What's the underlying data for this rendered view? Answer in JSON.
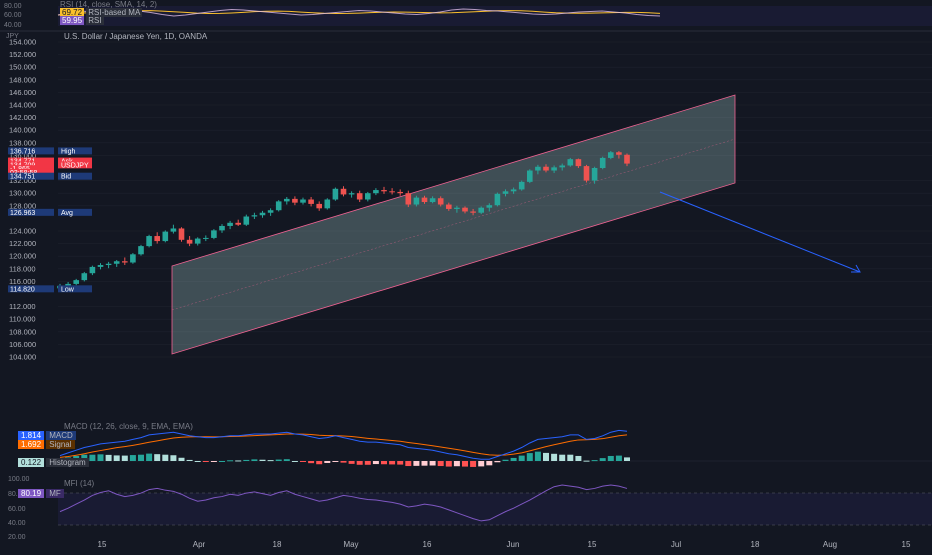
{
  "colors": {
    "background": "#131722",
    "grid": "#1e222d",
    "up": "#26a69a",
    "down": "#ef5350",
    "channel": "#f06292",
    "channel_fill": "#b2dfdb",
    "projection": "#2962ff",
    "rsi_line": "#e1bee7",
    "rsi_ma": "#fbc02d",
    "macd_line": "#2962ff",
    "signal_line": "#ff6d00",
    "mfi_line": "#7e57c2",
    "label_blue": "#1e3a78",
    "label_red": "#f23645"
  },
  "rsi_panel": {
    "title": "RSI (14, close, SMA, 14, 2)",
    "legend": [
      {
        "value": "69.72",
        "name": "RSI-based MA",
        "color": "#fbc02d"
      },
      {
        "value": "59.95",
        "name": "RSI",
        "color": "#7e57c2"
      }
    ],
    "axis": [
      "80.00",
      "60.00",
      "40.00"
    ],
    "points": [
      62,
      66,
      70,
      68,
      72,
      75,
      73,
      70,
      67,
      63,
      60,
      62,
      65,
      68,
      71,
      73,
      72,
      70,
      68,
      66,
      64,
      62,
      63,
      65,
      67,
      69,
      71,
      70,
      68,
      66,
      64,
      63,
      65,
      68,
      72,
      74,
      73,
      71,
      70,
      68,
      66,
      64,
      63,
      64,
      66,
      68,
      69,
      70,
      68,
      66,
      63,
      61,
      60
    ]
  },
  "main_chart": {
    "unit": "JPY",
    "title": "U.S. Dollar / Japanese Yen, 1D, OANDA",
    "axis_labels": [
      "154.000",
      "152.000",
      "150.000",
      "148.000",
      "146.000",
      "144.000",
      "142.000",
      "140.000",
      "138.000",
      "136.000",
      "132.000",
      "130.000",
      "128.000",
      "124.000",
      "122.000",
      "120.000",
      "118.000",
      "116.000",
      "112.000",
      "110.000",
      "108.000",
      "106.000",
      "104.000"
    ],
    "price_labels": [
      {
        "value": "136.716",
        "tag": "High",
        "price": 136.716,
        "kind": "blue"
      },
      {
        "value": "134.771",
        "tag": "Ask",
        "price": 135.1,
        "kind": "red"
      },
      {
        "value": "134.709",
        "tag": "USDJPY",
        "price": 134.5,
        "kind": "red"
      },
      {
        "value": "-1.865",
        "tag": "",
        "price": 133.9,
        "kind": "red"
      },
      {
        "value": "03:58:58",
        "tag": "",
        "price": 133.3,
        "kind": "red"
      },
      {
        "value": "134.751",
        "tag": "Bid",
        "price": 132.7,
        "kind": "blue"
      },
      {
        "value": "126.963",
        "tag": "Avg",
        "price": 126.963,
        "kind": "blue"
      },
      {
        "value": "114.820",
        "tag": "Low",
        "price": 114.82,
        "kind": "blue"
      }
    ]
  },
  "chart_data": {
    "type": "candlestick",
    "title": "U.S. Dollar / Japanese Yen, 1D, OANDA",
    "ylabel": "JPY",
    "ylim": [
      102,
      156
    ],
    "x_labels": [
      "15",
      "Apr",
      "18",
      "May",
      "16",
      "Jun",
      "15",
      "Jul",
      "18",
      "Aug",
      "15"
    ],
    "candles": [
      {
        "o": 114.9,
        "h": 115.6,
        "l": 114.8,
        "c": 115.3
      },
      {
        "o": 115.3,
        "h": 115.9,
        "l": 115.0,
        "c": 115.6
      },
      {
        "o": 115.6,
        "h": 116.4,
        "l": 115.4,
        "c": 116.2
      },
      {
        "o": 116.2,
        "h": 117.5,
        "l": 116.0,
        "c": 117.3
      },
      {
        "o": 117.3,
        "h": 118.5,
        "l": 117.0,
        "c": 118.3
      },
      {
        "o": 118.3,
        "h": 118.9,
        "l": 117.9,
        "c": 118.6
      },
      {
        "o": 118.6,
        "h": 119.1,
        "l": 118.1,
        "c": 118.8
      },
      {
        "o": 118.8,
        "h": 119.4,
        "l": 118.3,
        "c": 119.2
      },
      {
        "o": 119.2,
        "h": 119.8,
        "l": 118.6,
        "c": 119.0
      },
      {
        "o": 119.0,
        "h": 120.5,
        "l": 118.8,
        "c": 120.3
      },
      {
        "o": 120.3,
        "h": 121.8,
        "l": 120.1,
        "c": 121.6
      },
      {
        "o": 121.6,
        "h": 123.4,
        "l": 121.4,
        "c": 123.2
      },
      {
        "o": 123.2,
        "h": 123.8,
        "l": 122.0,
        "c": 122.4
      },
      {
        "o": 122.4,
        "h": 124.1,
        "l": 122.2,
        "c": 123.9
      },
      {
        "o": 123.9,
        "h": 125.0,
        "l": 123.6,
        "c": 124.4
      },
      {
        "o": 124.4,
        "h": 124.6,
        "l": 122.3,
        "c": 122.6
      },
      {
        "o": 122.6,
        "h": 123.2,
        "l": 121.6,
        "c": 122.0
      },
      {
        "o": 122.0,
        "h": 123.0,
        "l": 121.7,
        "c": 122.8
      },
      {
        "o": 122.8,
        "h": 123.3,
        "l": 122.4,
        "c": 122.9
      },
      {
        "o": 122.9,
        "h": 124.3,
        "l": 122.7,
        "c": 124.1
      },
      {
        "o": 124.1,
        "h": 125.1,
        "l": 123.7,
        "c": 124.8
      },
      {
        "o": 124.8,
        "h": 125.6,
        "l": 124.3,
        "c": 125.3
      },
      {
        "o": 125.3,
        "h": 125.8,
        "l": 124.8,
        "c": 125.0
      },
      {
        "o": 125.0,
        "h": 126.6,
        "l": 124.8,
        "c": 126.3
      },
      {
        "o": 126.3,
        "h": 126.9,
        "l": 125.9,
        "c": 126.5
      },
      {
        "o": 126.5,
        "h": 127.2,
        "l": 126.1,
        "c": 126.9
      },
      {
        "o": 126.9,
        "h": 127.6,
        "l": 126.4,
        "c": 127.3
      },
      {
        "o": 127.3,
        "h": 128.9,
        "l": 127.1,
        "c": 128.7
      },
      {
        "o": 128.7,
        "h": 129.4,
        "l": 128.2,
        "c": 129.1
      },
      {
        "o": 129.1,
        "h": 129.5,
        "l": 128.1,
        "c": 128.5
      },
      {
        "o": 128.5,
        "h": 129.3,
        "l": 128.2,
        "c": 129.0
      },
      {
        "o": 129.0,
        "h": 129.4,
        "l": 127.9,
        "c": 128.3
      },
      {
        "o": 128.3,
        "h": 128.7,
        "l": 127.2,
        "c": 127.6
      },
      {
        "o": 127.6,
        "h": 129.2,
        "l": 127.4,
        "c": 129.0
      },
      {
        "o": 129.0,
        "h": 130.9,
        "l": 128.8,
        "c": 130.7
      },
      {
        "o": 130.7,
        "h": 131.1,
        "l": 129.5,
        "c": 129.8
      },
      {
        "o": 129.8,
        "h": 130.3,
        "l": 129.3,
        "c": 130.0
      },
      {
        "o": 130.0,
        "h": 130.4,
        "l": 128.6,
        "c": 129.0
      },
      {
        "o": 129.0,
        "h": 130.2,
        "l": 128.7,
        "c": 130.0
      },
      {
        "o": 130.0,
        "h": 130.8,
        "l": 129.7,
        "c": 130.5
      },
      {
        "o": 130.5,
        "h": 131.0,
        "l": 129.9,
        "c": 130.3
      },
      {
        "o": 130.3,
        "h": 130.8,
        "l": 129.8,
        "c": 130.2
      },
      {
        "o": 130.2,
        "h": 130.6,
        "l": 129.6,
        "c": 130.0
      },
      {
        "o": 130.0,
        "h": 130.4,
        "l": 127.8,
        "c": 128.2
      },
      {
        "o": 128.2,
        "h": 129.6,
        "l": 127.9,
        "c": 129.3
      },
      {
        "o": 129.3,
        "h": 129.6,
        "l": 128.3,
        "c": 128.6
      },
      {
        "o": 128.6,
        "h": 129.5,
        "l": 128.4,
        "c": 129.2
      },
      {
        "o": 129.2,
        "h": 129.5,
        "l": 127.9,
        "c": 128.2
      },
      {
        "o": 128.2,
        "h": 128.5,
        "l": 127.2,
        "c": 127.5
      },
      {
        "o": 127.5,
        "h": 128.0,
        "l": 126.9,
        "c": 127.7
      },
      {
        "o": 127.7,
        "h": 127.9,
        "l": 126.8,
        "c": 127.1
      },
      {
        "o": 127.1,
        "h": 127.5,
        "l": 126.5,
        "c": 126.9
      },
      {
        "o": 126.9,
        "h": 127.9,
        "l": 126.7,
        "c": 127.7
      },
      {
        "o": 127.7,
        "h": 128.4,
        "l": 127.1,
        "c": 128.1
      },
      {
        "o": 128.1,
        "h": 130.1,
        "l": 127.9,
        "c": 129.9
      },
      {
        "o": 129.9,
        "h": 130.6,
        "l": 129.5,
        "c": 130.3
      },
      {
        "o": 130.3,
        "h": 130.9,
        "l": 129.9,
        "c": 130.6
      },
      {
        "o": 130.6,
        "h": 132.0,
        "l": 130.4,
        "c": 131.8
      },
      {
        "o": 131.8,
        "h": 133.8,
        "l": 131.6,
        "c": 133.6
      },
      {
        "o": 133.6,
        "h": 134.5,
        "l": 133.0,
        "c": 134.2
      },
      {
        "o": 134.2,
        "h": 134.6,
        "l": 133.3,
        "c": 133.6
      },
      {
        "o": 133.6,
        "h": 134.4,
        "l": 133.2,
        "c": 134.1
      },
      {
        "o": 134.1,
        "h": 134.7,
        "l": 133.6,
        "c": 134.4
      },
      {
        "o": 134.4,
        "h": 135.6,
        "l": 134.2,
        "c": 135.4
      },
      {
        "o": 135.4,
        "h": 135.5,
        "l": 134.0,
        "c": 134.3
      },
      {
        "o": 134.3,
        "h": 134.5,
        "l": 131.7,
        "c": 132.0
      },
      {
        "o": 132.0,
        "h": 134.2,
        "l": 131.5,
        "c": 134.0
      },
      {
        "o": 134.0,
        "h": 135.8,
        "l": 133.8,
        "c": 135.6
      },
      {
        "o": 135.6,
        "h": 136.7,
        "l": 135.4,
        "c": 136.5
      },
      {
        "o": 136.5,
        "h": 136.7,
        "l": 135.5,
        "c": 136.1
      },
      {
        "o": 136.1,
        "h": 136.3,
        "l": 134.3,
        "c": 134.7
      }
    ],
    "macd": [
      0.3,
      0.45,
      0.6,
      0.75,
      0.85,
      0.95,
      1.0,
      1.05,
      1.1,
      1.2,
      1.3,
      1.45,
      1.5,
      1.55,
      1.6,
      1.5,
      1.4,
      1.35,
      1.3,
      1.3,
      1.35,
      1.4,
      1.4,
      1.45,
      1.5,
      1.5,
      1.5,
      1.55,
      1.6,
      1.5,
      1.45,
      1.35,
      1.25,
      1.3,
      1.4,
      1.3,
      1.2,
      1.1,
      1.05,
      1.05,
      1.0,
      0.95,
      0.9,
      0.75,
      0.7,
      0.65,
      0.6,
      0.5,
      0.4,
      0.35,
      0.25,
      0.15,
      0.1,
      0.1,
      0.25,
      0.4,
      0.55,
      0.75,
      1.0,
      1.2,
      1.25,
      1.3,
      1.35,
      1.45,
      1.45,
      1.2,
      1.25,
      1.4,
      1.6,
      1.7,
      1.65
    ],
    "signal": [
      0.2,
      0.25,
      0.32,
      0.4,
      0.5,
      0.58,
      0.66,
      0.74,
      0.8,
      0.87,
      0.95,
      1.04,
      1.12,
      1.2,
      1.28,
      1.32,
      1.34,
      1.35,
      1.35,
      1.34,
      1.35,
      1.36,
      1.37,
      1.39,
      1.41,
      1.43,
      1.45,
      1.47,
      1.5,
      1.5,
      1.49,
      1.47,
      1.43,
      1.41,
      1.41,
      1.39,
      1.36,
      1.31,
      1.26,
      1.22,
      1.18,
      1.14,
      1.1,
      1.03,
      0.97,
      0.91,
      0.85,
      0.78,
      0.71,
      0.64,
      0.56,
      0.48,
      0.4,
      0.34,
      0.32,
      0.33,
      0.38,
      0.45,
      0.56,
      0.68,
      0.8,
      0.9,
      1.0,
      1.1,
      1.17,
      1.18,
      1.2,
      1.24,
      1.32,
      1.4,
      1.45
    ],
    "mfi": [
      42,
      48,
      55,
      62,
      70,
      75,
      78,
      72,
      68,
      70,
      74,
      80,
      82,
      79,
      77,
      72,
      65,
      60,
      62,
      66,
      68,
      72,
      70,
      74,
      76,
      73,
      70,
      75,
      78,
      72,
      68,
      64,
      60,
      62,
      66,
      70,
      68,
      65,
      63,
      62,
      60,
      58,
      55,
      50,
      52,
      55,
      53,
      50,
      45,
      40,
      35,
      30,
      26,
      28,
      35,
      42,
      48,
      55,
      62,
      70,
      78,
      85,
      88,
      86,
      84,
      80,
      82,
      86,
      88,
      86,
      82
    ],
    "series": [
      {
        "name": "MACD",
        "value": "1.814",
        "color": "#2962ff"
      },
      {
        "name": "Signal",
        "value": "1.692",
        "color": "#ff6d00"
      },
      {
        "name": "Histogram",
        "value": "0.122",
        "color": "#26a69a"
      },
      {
        "name": "MF",
        "value": "80.19",
        "color": "#7e57c2"
      }
    ]
  },
  "macd_panel": {
    "title": "MACD (12, 26, close, 9, EMA, EMA)",
    "legend": [
      {
        "value": "1.814",
        "name": "MACD",
        "color": "#2962ff"
      },
      {
        "value": "1.692",
        "name": "Signal",
        "color": "#ff6d00"
      },
      {
        "value": "0.122",
        "name": "Histogram",
        "color": "#4db6ac"
      }
    ]
  },
  "mfi_panel": {
    "title": "MFI (14)",
    "legend": [
      {
        "value": "80.19",
        "name": "MF",
        "color": "#7e57c2"
      }
    ],
    "axis": [
      "100.00",
      "80.00",
      "60.00",
      "40.00",
      "20.00"
    ]
  }
}
